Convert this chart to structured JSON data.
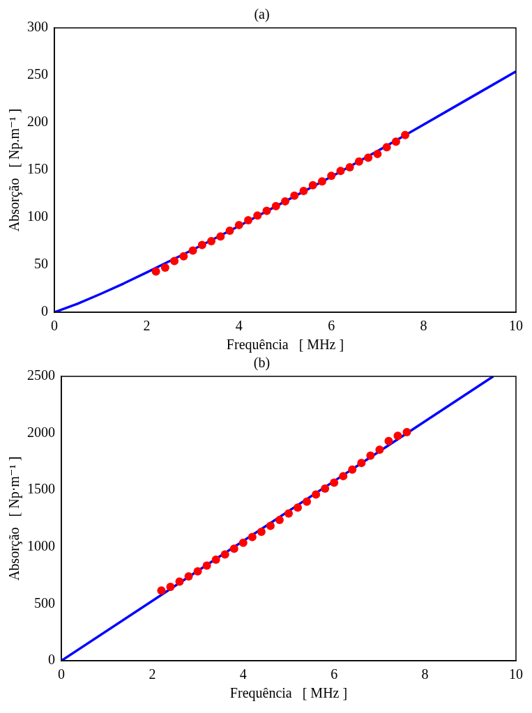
{
  "chart_data": [
    {
      "type": "scatter",
      "title": "(a)",
      "xlabel": "Frequência   [ MHz ]",
      "ylabel": "Absorção   [ Np.m⁻¹ ]",
      "xlim": [
        0,
        10
      ],
      "ylim": [
        0,
        300
      ],
      "xticks": [
        0,
        2,
        4,
        6,
        8,
        10
      ],
      "yticks": [
        0,
        50,
        100,
        150,
        200,
        250,
        300
      ],
      "x": [
        2.2,
        2.4,
        2.6,
        2.8,
        3.0,
        3.2,
        3.4,
        3.6,
        3.8,
        4.0,
        4.2,
        4.4,
        4.6,
        4.8,
        5.0,
        5.2,
        5.4,
        5.6,
        5.8,
        6.0,
        6.2,
        6.4,
        6.6,
        6.8,
        7.0,
        7.2,
        7.4,
        7.6
      ],
      "series": [
        {
          "type": "scatter",
          "marker": "circle",
          "color": "#ff0000",
          "values": [
            43,
            47,
            54,
            59,
            65,
            71,
            75,
            80,
            86,
            92,
            97,
            102,
            107,
            112,
            117,
            123,
            128,
            134,
            138,
            144,
            149,
            153,
            159,
            163,
            167,
            174,
            180,
            187
          ]
        },
        {
          "type": "line",
          "marker": "none",
          "color": "#0000ff",
          "x": [
            0,
            0.5,
            1,
            1.5,
            2,
            3,
            4,
            5,
            6,
            7,
            8,
            9,
            10
          ],
          "values": [
            0,
            8.9,
            19.3,
            30.3,
            42,
            66,
            91,
            117,
            143,
            170,
            198,
            226,
            254
          ]
        }
      ]
    },
    {
      "type": "scatter",
      "title": "(b)",
      "xlabel": "Frequência   [ MHz ]",
      "ylabel": "Absorção   [ Np·m⁻¹ ]",
      "xlim": [
        0,
        10
      ],
      "ylim": [
        0,
        2500
      ],
      "xticks": [
        0,
        2,
        4,
        6,
        8,
        10
      ],
      "yticks": [
        0,
        500,
        1000,
        1500,
        2000,
        2500
      ],
      "x": [
        2.2,
        2.4,
        2.6,
        2.8,
        3.0,
        3.2,
        3.4,
        3.6,
        3.8,
        4.0,
        4.2,
        4.4,
        4.6,
        4.8,
        5.0,
        5.2,
        5.4,
        5.6,
        5.8,
        6.0,
        6.2,
        6.4,
        6.6,
        6.8,
        7.0,
        7.2,
        7.4,
        7.6
      ],
      "series": [
        {
          "type": "scatter",
          "marker": "circle",
          "color": "#ff0000",
          "values": [
            618,
            650,
            696,
            741,
            786,
            837,
            889,
            934,
            985,
            1037,
            1088,
            1134,
            1185,
            1237,
            1295,
            1346,
            1398,
            1462,
            1514,
            1565,
            1623,
            1681,
            1739,
            1803,
            1855,
            1932,
            1977,
            2010
          ]
        },
        {
          "type": "line",
          "marker": "none",
          "color": "#0000ff",
          "x": [
            0,
            9.5
          ],
          "values": [
            0,
            2500
          ]
        }
      ]
    }
  ]
}
